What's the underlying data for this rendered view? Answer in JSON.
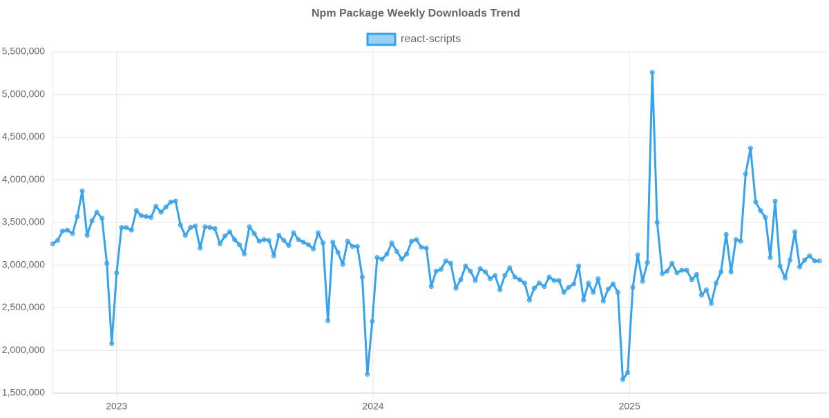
{
  "chart_data": {
    "type": "line",
    "title": "Npm Package Weekly Downloads Trend",
    "x": [
      2022.751,
      2022.77,
      2022.789,
      2022.808,
      2022.828,
      2022.847,
      2022.866,
      2022.885,
      2022.904,
      2022.923,
      2022.943,
      2022.962,
      2022.981,
      2023.0,
      2023.019,
      2023.038,
      2023.058,
      2023.077,
      2023.096,
      2023.115,
      2023.134,
      2023.153,
      2023.173,
      2023.192,
      2023.211,
      2023.23,
      2023.249,
      2023.268,
      2023.288,
      2023.307,
      2023.326,
      2023.345,
      2023.364,
      2023.383,
      2023.403,
      2023.422,
      2023.441,
      2023.46,
      2023.479,
      2023.498,
      2023.518,
      2023.537,
      2023.556,
      2023.575,
      2023.594,
      2023.613,
      2023.633,
      2023.652,
      2023.671,
      2023.69,
      2023.709,
      2023.728,
      2023.748,
      2023.767,
      2023.786,
      2023.805,
      2023.824,
      2023.843,
      2023.863,
      2023.882,
      2023.901,
      2023.92,
      2023.939,
      2023.958,
      2023.978,
      2023.997,
      2024.016,
      2024.035,
      2024.054,
      2024.073,
      2024.093,
      2024.112,
      2024.131,
      2024.15,
      2024.169,
      2024.188,
      2024.208,
      2024.227,
      2024.246,
      2024.265,
      2024.284,
      2024.303,
      2024.323,
      2024.342,
      2024.361,
      2024.38,
      2024.399,
      2024.418,
      2024.438,
      2024.457,
      2024.476,
      2024.495,
      2024.514,
      2024.533,
      2024.553,
      2024.572,
      2024.591,
      2024.61,
      2024.629,
      2024.648,
      2024.668,
      2024.687,
      2024.706,
      2024.725,
      2024.744,
      2024.763,
      2024.783,
      2024.802,
      2024.821,
      2024.84,
      2024.859,
      2024.878,
      2024.898,
      2024.917,
      2024.936,
      2024.955,
      2024.974,
      2024.993,
      2025.013,
      2025.032,
      2025.051,
      2025.07,
      2025.089,
      2025.108,
      2025.128,
      2025.147,
      2025.166,
      2025.185,
      2025.204,
      2025.223,
      2025.243,
      2025.262,
      2025.281,
      2025.3,
      2025.319,
      2025.338,
      2025.357,
      2025.377,
      2025.396,
      2025.415,
      2025.434,
      2025.453,
      2025.472,
      2025.492,
      2025.511,
      2025.53,
      2025.549,
      2025.568,
      2025.587,
      2025.607,
      2025.626,
      2025.645,
      2025.664,
      2025.683,
      2025.702,
      2025.722,
      2025.741
    ],
    "series": [
      {
        "name": "react-scripts",
        "color": "#36a2eb",
        "values": [
          3250000,
          3290000,
          3400000,
          3410000,
          3370000,
          3570000,
          3870000,
          3350000,
          3520000,
          3620000,
          3550000,
          3020000,
          2080000,
          2910000,
          3440000,
          3440000,
          3410000,
          3640000,
          3580000,
          3570000,
          3560000,
          3690000,
          3620000,
          3680000,
          3740000,
          3750000,
          3470000,
          3350000,
          3440000,
          3460000,
          3200000,
          3450000,
          3440000,
          3430000,
          3250000,
          3340000,
          3390000,
          3300000,
          3240000,
          3130000,
          3450000,
          3370000,
          3280000,
          3300000,
          3290000,
          3110000,
          3350000,
          3290000,
          3230000,
          3380000,
          3300000,
          3270000,
          3240000,
          3190000,
          3380000,
          3260000,
          2350000,
          3270000,
          3150000,
          3010000,
          3280000,
          3220000,
          3220000,
          2860000,
          1720000,
          2340000,
          3090000,
          3070000,
          3130000,
          3260000,
          3160000,
          3070000,
          3130000,
          3280000,
          3300000,
          3210000,
          3200000,
          2750000,
          2930000,
          2950000,
          3050000,
          3020000,
          2730000,
          2830000,
          2990000,
          2930000,
          2820000,
          2960000,
          2920000,
          2840000,
          2880000,
          2710000,
          2880000,
          2970000,
          2860000,
          2830000,
          2790000,
          2590000,
          2730000,
          2790000,
          2750000,
          2860000,
          2820000,
          2820000,
          2680000,
          2740000,
          2780000,
          2990000,
          2590000,
          2790000,
          2680000,
          2840000,
          2580000,
          2720000,
          2780000,
          2680000,
          1660000,
          1740000,
          2740000,
          3120000,
          2810000,
          3030000,
          5260000,
          3500000,
          2900000,
          2930000,
          3020000,
          2910000,
          2940000,
          2940000,
          2830000,
          2890000,
          2650000,
          2710000,
          2550000,
          2790000,
          2920000,
          3360000,
          2920000,
          3300000,
          3280000,
          4070000,
          4370000,
          3740000,
          3640000,
          3560000,
          3090000,
          3750000,
          2990000,
          2850000,
          3060000,
          3390000,
          2980000,
          3060000,
          3110000,
          3050000,
          3050000
        ]
      }
    ],
    "xlim": [
      2022.75,
      2025.77
    ],
    "xticks": [
      2023,
      2024,
      2025
    ],
    "ylim": [
      1500000,
      5500000
    ],
    "yticks": [
      {
        "value": 1500000,
        "label": "1,500,000"
      },
      {
        "value": 2000000,
        "label": "2,000,000"
      },
      {
        "value": 2500000,
        "label": "2,500,000"
      },
      {
        "value": 3000000,
        "label": "3,000,000"
      },
      {
        "value": 3500000,
        "label": "3,500,000"
      },
      {
        "value": 4000000,
        "label": "4,000,000"
      },
      {
        "value": 4500000,
        "label": "4,500,000"
      },
      {
        "value": 5000000,
        "label": "5,000,000"
      },
      {
        "value": 5500000,
        "label": "5,500,000"
      }
    ],
    "grid": true,
    "legend": "top"
  }
}
